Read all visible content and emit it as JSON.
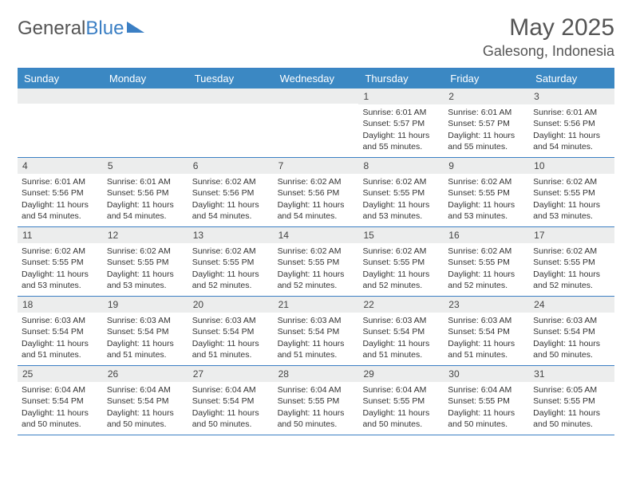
{
  "logo": {
    "part1": "General",
    "part2": "Blue"
  },
  "title": "May 2025",
  "location": "Galesong, Indonesia",
  "headers": [
    "Sunday",
    "Monday",
    "Tuesday",
    "Wednesday",
    "Thursday",
    "Friday",
    "Saturday"
  ],
  "colors": {
    "header_bg": "#3b88c3",
    "header_text": "#ffffff",
    "border": "#3b7fc4",
    "daynum_bg": "#eceded",
    "text": "#333333"
  },
  "weeks": [
    [
      {
        "n": "",
        "sr": "",
        "ss": "",
        "dl": ""
      },
      {
        "n": "",
        "sr": "",
        "ss": "",
        "dl": ""
      },
      {
        "n": "",
        "sr": "",
        "ss": "",
        "dl": ""
      },
      {
        "n": "",
        "sr": "",
        "ss": "",
        "dl": ""
      },
      {
        "n": "1",
        "sr": "Sunrise: 6:01 AM",
        "ss": "Sunset: 5:57 PM",
        "dl": "Daylight: 11 hours and 55 minutes."
      },
      {
        "n": "2",
        "sr": "Sunrise: 6:01 AM",
        "ss": "Sunset: 5:57 PM",
        "dl": "Daylight: 11 hours and 55 minutes."
      },
      {
        "n": "3",
        "sr": "Sunrise: 6:01 AM",
        "ss": "Sunset: 5:56 PM",
        "dl": "Daylight: 11 hours and 54 minutes."
      }
    ],
    [
      {
        "n": "4",
        "sr": "Sunrise: 6:01 AM",
        "ss": "Sunset: 5:56 PM",
        "dl": "Daylight: 11 hours and 54 minutes."
      },
      {
        "n": "5",
        "sr": "Sunrise: 6:01 AM",
        "ss": "Sunset: 5:56 PM",
        "dl": "Daylight: 11 hours and 54 minutes."
      },
      {
        "n": "6",
        "sr": "Sunrise: 6:02 AM",
        "ss": "Sunset: 5:56 PM",
        "dl": "Daylight: 11 hours and 54 minutes."
      },
      {
        "n": "7",
        "sr": "Sunrise: 6:02 AM",
        "ss": "Sunset: 5:56 PM",
        "dl": "Daylight: 11 hours and 54 minutes."
      },
      {
        "n": "8",
        "sr": "Sunrise: 6:02 AM",
        "ss": "Sunset: 5:55 PM",
        "dl": "Daylight: 11 hours and 53 minutes."
      },
      {
        "n": "9",
        "sr": "Sunrise: 6:02 AM",
        "ss": "Sunset: 5:55 PM",
        "dl": "Daylight: 11 hours and 53 minutes."
      },
      {
        "n": "10",
        "sr": "Sunrise: 6:02 AM",
        "ss": "Sunset: 5:55 PM",
        "dl": "Daylight: 11 hours and 53 minutes."
      }
    ],
    [
      {
        "n": "11",
        "sr": "Sunrise: 6:02 AM",
        "ss": "Sunset: 5:55 PM",
        "dl": "Daylight: 11 hours and 53 minutes."
      },
      {
        "n": "12",
        "sr": "Sunrise: 6:02 AM",
        "ss": "Sunset: 5:55 PM",
        "dl": "Daylight: 11 hours and 53 minutes."
      },
      {
        "n": "13",
        "sr": "Sunrise: 6:02 AM",
        "ss": "Sunset: 5:55 PM",
        "dl": "Daylight: 11 hours and 52 minutes."
      },
      {
        "n": "14",
        "sr": "Sunrise: 6:02 AM",
        "ss": "Sunset: 5:55 PM",
        "dl": "Daylight: 11 hours and 52 minutes."
      },
      {
        "n": "15",
        "sr": "Sunrise: 6:02 AM",
        "ss": "Sunset: 5:55 PM",
        "dl": "Daylight: 11 hours and 52 minutes."
      },
      {
        "n": "16",
        "sr": "Sunrise: 6:02 AM",
        "ss": "Sunset: 5:55 PM",
        "dl": "Daylight: 11 hours and 52 minutes."
      },
      {
        "n": "17",
        "sr": "Sunrise: 6:02 AM",
        "ss": "Sunset: 5:55 PM",
        "dl": "Daylight: 11 hours and 52 minutes."
      }
    ],
    [
      {
        "n": "18",
        "sr": "Sunrise: 6:03 AM",
        "ss": "Sunset: 5:54 PM",
        "dl": "Daylight: 11 hours and 51 minutes."
      },
      {
        "n": "19",
        "sr": "Sunrise: 6:03 AM",
        "ss": "Sunset: 5:54 PM",
        "dl": "Daylight: 11 hours and 51 minutes."
      },
      {
        "n": "20",
        "sr": "Sunrise: 6:03 AM",
        "ss": "Sunset: 5:54 PM",
        "dl": "Daylight: 11 hours and 51 minutes."
      },
      {
        "n": "21",
        "sr": "Sunrise: 6:03 AM",
        "ss": "Sunset: 5:54 PM",
        "dl": "Daylight: 11 hours and 51 minutes."
      },
      {
        "n": "22",
        "sr": "Sunrise: 6:03 AM",
        "ss": "Sunset: 5:54 PM",
        "dl": "Daylight: 11 hours and 51 minutes."
      },
      {
        "n": "23",
        "sr": "Sunrise: 6:03 AM",
        "ss": "Sunset: 5:54 PM",
        "dl": "Daylight: 11 hours and 51 minutes."
      },
      {
        "n": "24",
        "sr": "Sunrise: 6:03 AM",
        "ss": "Sunset: 5:54 PM",
        "dl": "Daylight: 11 hours and 50 minutes."
      }
    ],
    [
      {
        "n": "25",
        "sr": "Sunrise: 6:04 AM",
        "ss": "Sunset: 5:54 PM",
        "dl": "Daylight: 11 hours and 50 minutes."
      },
      {
        "n": "26",
        "sr": "Sunrise: 6:04 AM",
        "ss": "Sunset: 5:54 PM",
        "dl": "Daylight: 11 hours and 50 minutes."
      },
      {
        "n": "27",
        "sr": "Sunrise: 6:04 AM",
        "ss": "Sunset: 5:54 PM",
        "dl": "Daylight: 11 hours and 50 minutes."
      },
      {
        "n": "28",
        "sr": "Sunrise: 6:04 AM",
        "ss": "Sunset: 5:55 PM",
        "dl": "Daylight: 11 hours and 50 minutes."
      },
      {
        "n": "29",
        "sr": "Sunrise: 6:04 AM",
        "ss": "Sunset: 5:55 PM",
        "dl": "Daylight: 11 hours and 50 minutes."
      },
      {
        "n": "30",
        "sr": "Sunrise: 6:04 AM",
        "ss": "Sunset: 5:55 PM",
        "dl": "Daylight: 11 hours and 50 minutes."
      },
      {
        "n": "31",
        "sr": "Sunrise: 6:05 AM",
        "ss": "Sunset: 5:55 PM",
        "dl": "Daylight: 11 hours and 50 minutes."
      }
    ]
  ]
}
